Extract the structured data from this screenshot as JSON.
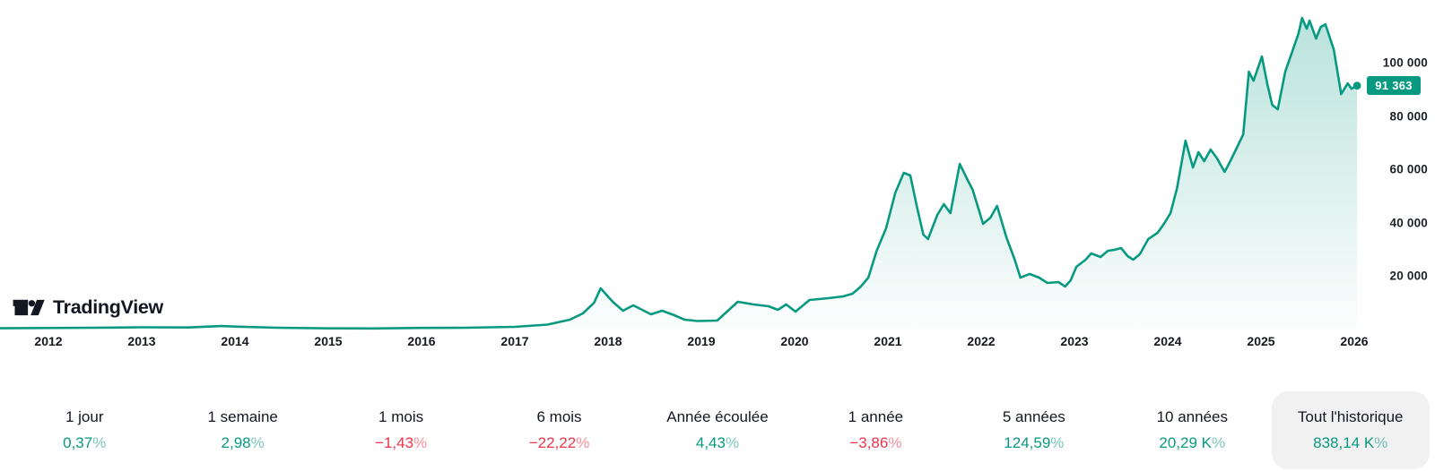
{
  "brand": {
    "name": "TradingView"
  },
  "chart_data": {
    "type": "area",
    "x_axis": {
      "years": [
        2012,
        2013,
        2014,
        2015,
        2016,
        2017,
        2018,
        2019,
        2020,
        2021,
        2022,
        2023,
        2024,
        2025,
        2026
      ]
    },
    "y_axis": {
      "ticks": [
        {
          "value": 100000,
          "label": "100 000"
        },
        {
          "value": 80000,
          "label": "80 000"
        },
        {
          "value": 60000,
          "label": "60 000"
        },
        {
          "value": 40000,
          "label": "40 000"
        },
        {
          "value": 20000,
          "label": "20 000"
        }
      ],
      "range": [
        0,
        123000
      ]
    },
    "last_price": {
      "value": 91363,
      "label": "91 363",
      "t": 2026.03
    },
    "series": [
      {
        "name": "price",
        "points": [
          [
            2011.48,
            300
          ],
          [
            2012.5,
            500
          ],
          [
            2013.0,
            670
          ],
          [
            2013.5,
            600
          ],
          [
            2013.86,
            1150
          ],
          [
            2014.0,
            950
          ],
          [
            2014.45,
            520
          ],
          [
            2015.0,
            280
          ],
          [
            2015.47,
            250
          ],
          [
            2016.0,
            430
          ],
          [
            2016.48,
            520
          ],
          [
            2017.0,
            840
          ],
          [
            2017.35,
            1680
          ],
          [
            2017.59,
            3530
          ],
          [
            2017.73,
            5880
          ],
          [
            2017.85,
            9900
          ],
          [
            2017.92,
            15300
          ],
          [
            2018.05,
            10250
          ],
          [
            2018.16,
            6890
          ],
          [
            2018.27,
            8900
          ],
          [
            2018.46,
            5550
          ],
          [
            2018.58,
            6890
          ],
          [
            2018.71,
            5210
          ],
          [
            2018.82,
            3530
          ],
          [
            2018.96,
            3020
          ],
          [
            2019.17,
            3190
          ],
          [
            2019.39,
            10250
          ],
          [
            2019.56,
            9240
          ],
          [
            2019.72,
            8570
          ],
          [
            2019.82,
            7230
          ],
          [
            2019.91,
            9240
          ],
          [
            2020.01,
            6550
          ],
          [
            2020.16,
            10920
          ],
          [
            2020.36,
            11590
          ],
          [
            2020.52,
            12260
          ],
          [
            2020.62,
            13270
          ],
          [
            2020.71,
            15960
          ],
          [
            2020.79,
            19320
          ],
          [
            2020.88,
            29400
          ],
          [
            2020.98,
            37800
          ],
          [
            2021.08,
            51250
          ],
          [
            2021.17,
            58650
          ],
          [
            2021.24,
            57640
          ],
          [
            2021.31,
            46200
          ],
          [
            2021.38,
            35460
          ],
          [
            2021.43,
            33780
          ],
          [
            2021.53,
            42850
          ],
          [
            2021.6,
            46890
          ],
          [
            2021.67,
            43530
          ],
          [
            2021.77,
            62000
          ],
          [
            2021.85,
            56300
          ],
          [
            2021.91,
            52260
          ],
          [
            2022.02,
            39490
          ],
          [
            2022.1,
            41850
          ],
          [
            2022.17,
            46220
          ],
          [
            2022.27,
            34450
          ],
          [
            2022.36,
            26050
          ],
          [
            2022.42,
            19320
          ],
          [
            2022.52,
            20670
          ],
          [
            2022.62,
            19320
          ],
          [
            2022.71,
            17310
          ],
          [
            2022.83,
            17640
          ],
          [
            2022.9,
            15960
          ],
          [
            2022.96,
            18320
          ],
          [
            2023.02,
            23360
          ],
          [
            2023.12,
            26050
          ],
          [
            2023.18,
            28400
          ],
          [
            2023.28,
            27050
          ],
          [
            2023.36,
            29400
          ],
          [
            2023.43,
            29740
          ],
          [
            2023.5,
            30410
          ],
          [
            2023.57,
            27390
          ],
          [
            2023.63,
            26050
          ],
          [
            2023.7,
            28060
          ],
          [
            2023.79,
            33770
          ],
          [
            2023.89,
            36130
          ],
          [
            2023.96,
            39490
          ],
          [
            2024.03,
            43520
          ],
          [
            2024.1,
            52940
          ],
          [
            2024.19,
            70750
          ],
          [
            2024.27,
            60670
          ],
          [
            2024.33,
            66390
          ],
          [
            2024.39,
            63020
          ],
          [
            2024.46,
            67400
          ],
          [
            2024.53,
            64030
          ],
          [
            2024.61,
            58990
          ],
          [
            2024.67,
            63020
          ],
          [
            2024.75,
            68740
          ],
          [
            2024.81,
            73100
          ],
          [
            2024.87,
            96620
          ],
          [
            2024.92,
            93260
          ],
          [
            2025.01,
            102330
          ],
          [
            2025.07,
            91580
          ],
          [
            2025.12,
            84180
          ],
          [
            2025.18,
            82500
          ],
          [
            2025.26,
            96620
          ],
          [
            2025.35,
            105700
          ],
          [
            2025.4,
            110740
          ],
          [
            2025.44,
            116790
          ],
          [
            2025.49,
            112760
          ],
          [
            2025.52,
            115780
          ],
          [
            2025.59,
            109060
          ],
          [
            2025.64,
            113430
          ],
          [
            2025.69,
            114440
          ],
          [
            2025.78,
            105030
          ],
          [
            2025.86,
            88220
          ],
          [
            2025.93,
            92250
          ],
          [
            2025.97,
            90240
          ],
          [
            2026.03,
            91363
          ]
        ]
      }
    ],
    "colors": {
      "line": "#089981",
      "up": "#089981",
      "down": "#ef3349",
      "badge_bg": "#089981",
      "badge_text": "#ffffff",
      "selected_tab_bg": "#f1f1f2"
    }
  },
  "periods": [
    {
      "label": "1 jour",
      "value": "0,37%",
      "direction": "up",
      "selected": false
    },
    {
      "label": "1 semaine",
      "value": "2,98%",
      "direction": "up",
      "selected": false
    },
    {
      "label": "1 mois",
      "value": "−1,43%",
      "direction": "down",
      "selected": false
    },
    {
      "label": "6 mois",
      "value": "−22,22%",
      "direction": "down",
      "selected": false
    },
    {
      "label": "Année écoulée",
      "value": "4,43%",
      "direction": "up",
      "selected": false
    },
    {
      "label": "1 année",
      "value": "−3,86%",
      "direction": "down",
      "selected": false
    },
    {
      "label": "5 années",
      "value": "124,59%",
      "direction": "up",
      "selected": false
    },
    {
      "label": "10 années",
      "value": "20,29 K%",
      "direction": "up",
      "selected": false
    },
    {
      "label": "Tout l'historique",
      "value": "838,14 K%",
      "direction": "up",
      "selected": true
    }
  ]
}
